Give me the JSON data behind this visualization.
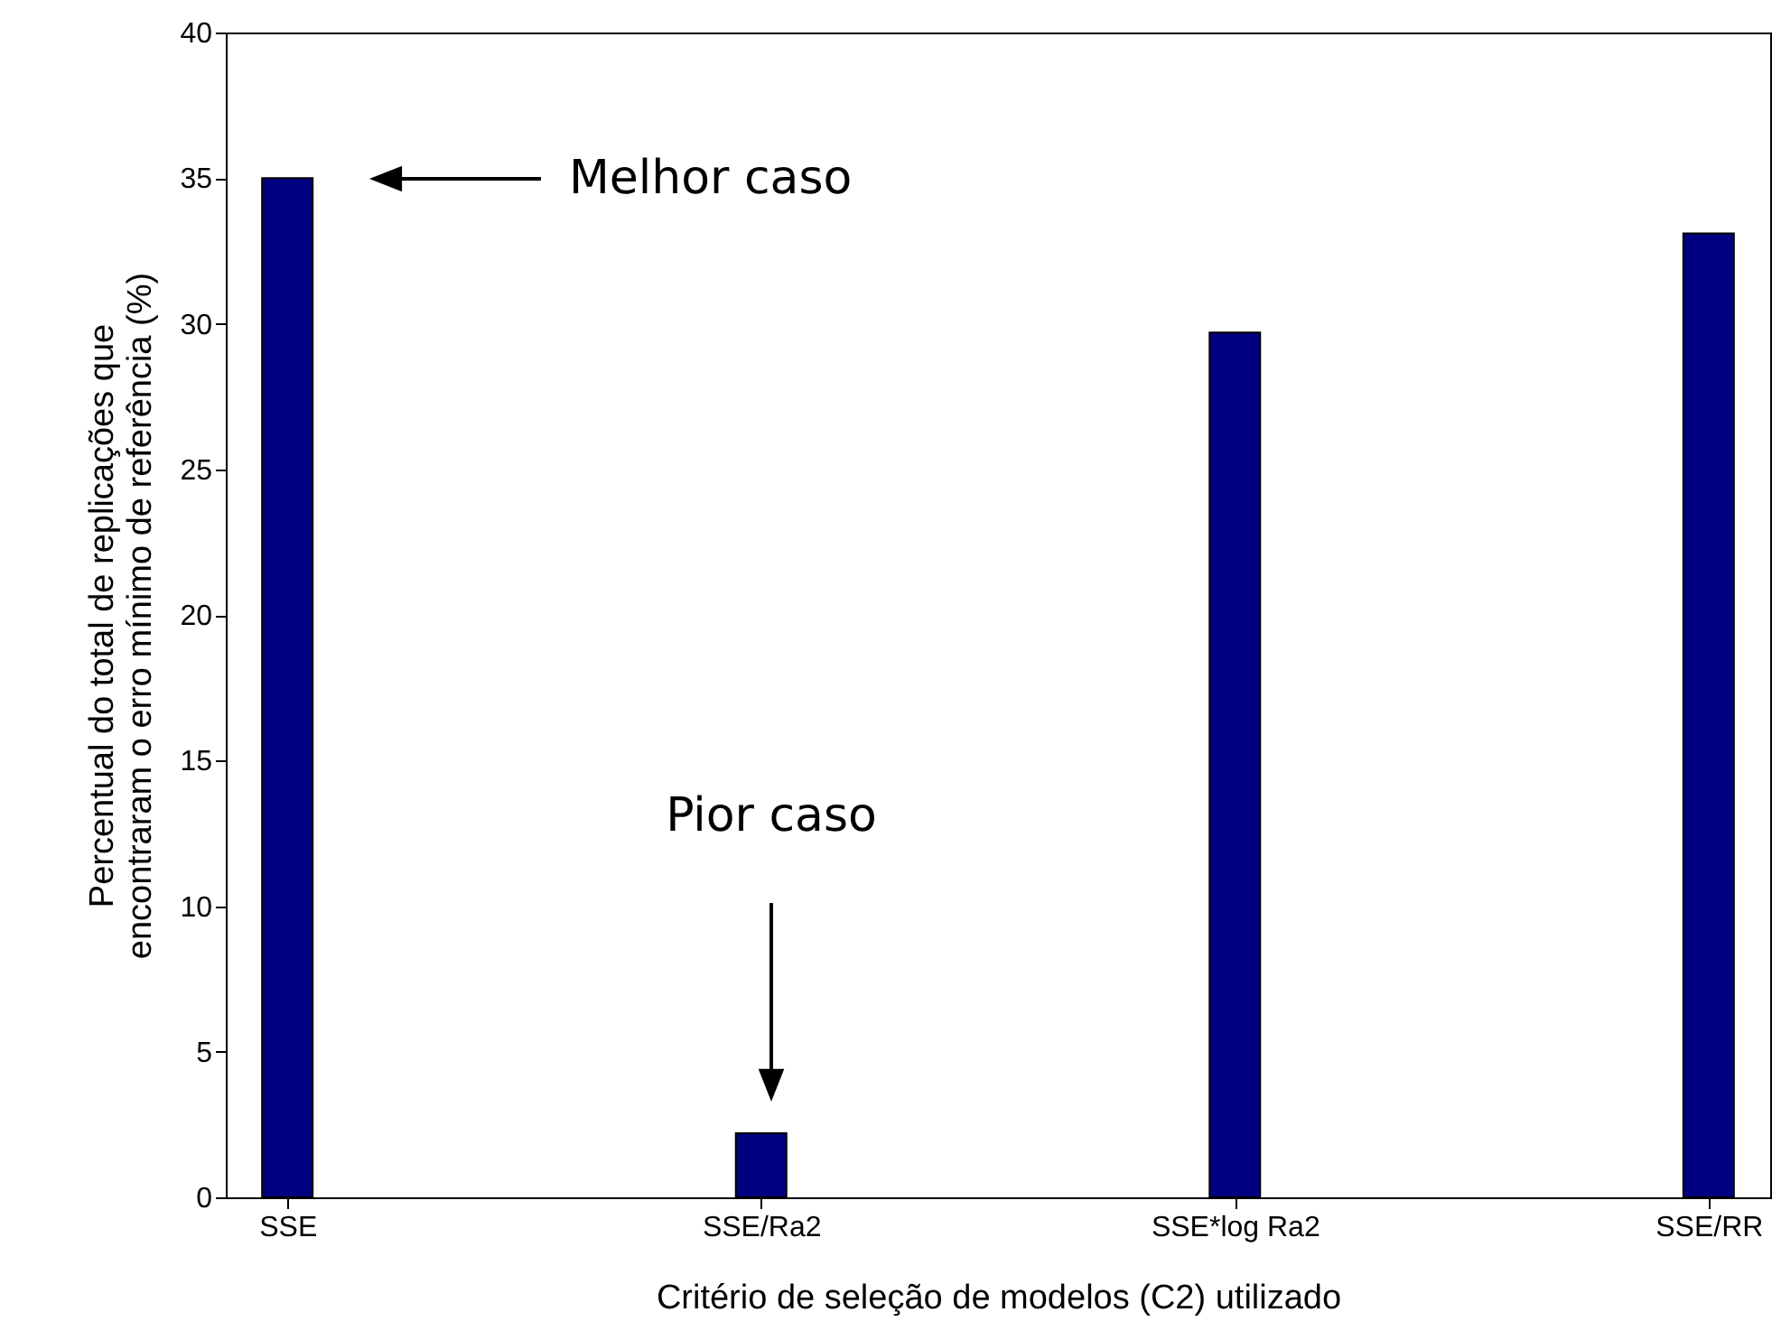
{
  "chart_data": {
    "type": "bar",
    "categories": [
      "SSE",
      "SSE/Ra2",
      "SSE*log Ra2",
      "SSE/RR"
    ],
    "values": [
      35,
      2.2,
      29.7,
      33.1
    ],
    "color": "#000080",
    "xlabel": "Critério de seleção de modelos (C2) utilizado",
    "ylabel": "Percentual do total de replicações que\nencontraram o erro mínimo de referência (%)",
    "ylim": [
      0,
      40
    ],
    "yticks": [
      0,
      5,
      10,
      15,
      20,
      25,
      30,
      35,
      40
    ],
    "grid": false,
    "annotations": [
      "Melhor caso",
      "Pior caso"
    ]
  }
}
